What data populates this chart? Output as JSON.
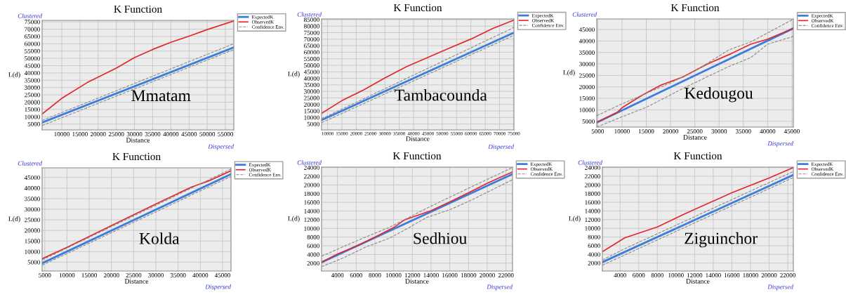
{
  "chart_data": [
    {
      "type": "line",
      "title": "K Function",
      "xlabel": "Distance",
      "ylabel": "L(d)",
      "annotations": [
        "Clustered",
        "Dispersed",
        "Mmatam"
      ],
      "grid": true,
      "legend": "top right",
      "xlim": [
        4600,
        57300
      ],
      "xticks": [
        10000,
        15000,
        20000,
        25000,
        30000,
        35000,
        40000,
        45000,
        50000,
        55000
      ],
      "ylim": [
        1000,
        76000
      ],
      "yticks": [
        5000,
        10000,
        15000,
        20000,
        25000,
        30000,
        35000,
        40000,
        45000,
        50000,
        55000,
        60000,
        65000,
        70000,
        75000
      ],
      "series": [
        {
          "name": "ExpectedK",
          "color": "#3b7ddd",
          "line_style": "solid",
          "x": [
            4600,
            57300
          ],
          "values": [
            6000,
            57500
          ]
        },
        {
          "name": "ObservedK",
          "color": "#e3262d",
          "line_style": "solid",
          "x": [
            4600,
            10000,
            17000,
            25000,
            30000,
            35000,
            40000,
            45000,
            50000,
            57300
          ],
          "values": [
            11900,
            22600,
            33400,
            43300,
            50500,
            56100,
            61000,
            65200,
            69700,
            75600
          ]
        },
        {
          "name": "Confidence Env.",
          "color": "#8a8a8a",
          "line_style": "dashed",
          "x": [
            4600,
            57300
          ],
          "values": [
            7500,
            60000
          ]
        },
        {
          "color": "#8a8a8a",
          "line_style": "dashed",
          "x": [
            4600,
            57300
          ],
          "values": [
            4000,
            56000
          ]
        }
      ]
    },
    {
      "type": "line",
      "title": "K Function",
      "xlabel": "Distance",
      "ylabel": "L(d)",
      "annotations": [
        "Clustered",
        "Dispersed",
        "Tambacounda"
      ],
      "grid": true,
      "legend": "top right",
      "xlim": [
        7900,
        75000
      ],
      "xticks": [
        10000,
        15000,
        20000,
        25000,
        30000,
        35000,
        40000,
        45000,
        50000,
        55000,
        60000,
        65000,
        70000,
        75000
      ],
      "ylim": [
        500,
        85500
      ],
      "yticks": [
        5000,
        10000,
        15000,
        20000,
        25000,
        30000,
        35000,
        40000,
        45000,
        50000,
        55000,
        60000,
        65000,
        70000,
        75000,
        80000,
        85000
      ],
      "series": [
        {
          "name": "ExpectedK",
          "color": "#3b7ddd",
          "line_style": "solid",
          "x": [
            7900,
            75000
          ],
          "values": [
            8000,
            75000
          ]
        },
        {
          "name": "ObservedK",
          "color": "#e3262d",
          "line_style": "solid",
          "x": [
            7900,
            15000,
            22500,
            30000,
            37500,
            45000,
            52500,
            60000,
            67500,
            75000
          ],
          "values": [
            13100,
            22900,
            31000,
            40300,
            48900,
            56100,
            63200,
            70100,
            78100,
            84600
          ]
        },
        {
          "name": "Confidence Env.",
          "color": "#8a8a8a",
          "line_style": "dashed",
          "x": [
            7900,
            75000
          ],
          "values": [
            9000,
            79000
          ]
        },
        {
          "color": "#8a8a8a",
          "line_style": "dashed",
          "x": [
            7900,
            75000
          ],
          "values": [
            6000,
            73000
          ]
        }
      ]
    },
    {
      "type": "line",
      "title": "K Function",
      "xlabel": "Distance",
      "ylabel": "L(d)",
      "annotations": [
        "Clustered",
        "Dispersed",
        "Kedougou"
      ],
      "grid": true,
      "legend": "top right",
      "xlim": [
        4800,
        45300
      ],
      "xticks": [
        5000,
        10000,
        15000,
        20000,
        25000,
        30000,
        35000,
        40000,
        45000
      ],
      "ylim": [
        2500,
        49600
      ],
      "yticks": [
        5000,
        10000,
        15000,
        20000,
        25000,
        30000,
        35000,
        40000,
        45000
      ],
      "series": [
        {
          "name": "ExpectedK",
          "color": "#3b7ddd",
          "line_style": "solid",
          "x": [
            4800,
            45300
          ],
          "values": [
            4500,
            45500
          ]
        },
        {
          "name": "ObservedK",
          "color": "#e3262d",
          "line_style": "solid",
          "x": [
            4800,
            9000,
            10000,
            14000,
            18000,
            22500,
            27500,
            32500,
            36500,
            40000,
            45300
          ],
          "values": [
            4600,
            8900,
            10900,
            16200,
            20800,
            24300,
            29900,
            34500,
            38600,
            40800,
            45500
          ]
        },
        {
          "name": "Confidence Env.",
          "color": "#8a8a8a",
          "line_style": "dashed",
          "x": [
            4800,
            10000,
            20000,
            25000,
            32000,
            36500,
            45300
          ],
          "values": [
            7500,
            12600,
            21800,
            26900,
            36100,
            39600,
            49500
          ]
        },
        {
          "color": "#8a8a8a",
          "line_style": "dashed",
          "x": [
            4800,
            10000,
            15000,
            23000,
            32000,
            36500,
            40000,
            45300
          ],
          "values": [
            2500,
            7000,
            11100,
            19800,
            28900,
            32700,
            38600,
            42000
          ]
        }
      ]
    },
    {
      "type": "line",
      "title": "K Function",
      "xlabel": "Distance",
      "ylabel": "L(d)",
      "annotations": [
        "Clustered",
        "Dispersed",
        "Kolda"
      ],
      "grid": true,
      "legend": "top right",
      "xlim": [
        4400,
        46900
      ],
      "xticks": [
        5000,
        10000,
        15000,
        20000,
        25000,
        30000,
        35000,
        40000,
        45000
      ],
      "ylim": [
        800,
        49600
      ],
      "yticks": [
        5000,
        10000,
        15000,
        20000,
        25000,
        30000,
        35000,
        40000,
        45000
      ],
      "series": [
        {
          "name": "ExpectedK",
          "color": "#3b7ddd",
          "line_style": "solid",
          "x": [
            4400,
            46900
          ],
          "values": [
            4500,
            46600
          ]
        },
        {
          "name": "ObservedK",
          "color": "#e3262d",
          "line_style": "solid",
          "x": [
            4400,
            10000,
            20000,
            30000,
            38000,
            42000,
            46900
          ],
          "values": [
            6600,
            12000,
            22300,
            32500,
            40500,
            43500,
            48200
          ]
        },
        {
          "name": "Confidence Env.",
          "color": "#8a8a8a",
          "line_style": "dashed",
          "x": [
            4400,
            46900
          ],
          "values": [
            6000,
            49000
          ]
        },
        {
          "color": "#8a8a8a",
          "line_style": "dashed",
          "x": [
            4400,
            46900
          ],
          "values": [
            3500,
            45500
          ]
        }
      ]
    },
    {
      "type": "line",
      "title": "K Function",
      "xlabel": "Distance",
      "ylabel": "L(d)",
      "annotations": [
        "Clustered",
        "Dispersed",
        "Sedhiou"
      ],
      "grid": true,
      "legend": "top right",
      "xlim": [
        2300,
        22700
      ],
      "xticks": [
        4000,
        6000,
        8000,
        10000,
        12000,
        14000,
        16000,
        18000,
        20000,
        22000
      ],
      "ylim": [
        200,
        24100
      ],
      "yticks": [
        2000,
        4000,
        6000,
        8000,
        10000,
        12000,
        14000,
        16000,
        18000,
        20000,
        22000,
        24000
      ],
      "series": [
        {
          "name": "ExpectedK",
          "color": "#3b7ddd",
          "line_style": "solid",
          "x": [
            2300,
            22700
          ],
          "values": [
            2200,
            22500
          ]
        },
        {
          "name": "ObservedK",
          "color": "#e3262d",
          "line_style": "solid",
          "x": [
            2300,
            4000,
            6000,
            8000,
            10000,
            11200,
            14000,
            16000,
            18000,
            20000,
            22700
          ],
          "values": [
            2200,
            4100,
            5900,
            8000,
            10200,
            12000,
            14100,
            16100,
            18200,
            20400,
            23000
          ]
        },
        {
          "name": "Confidence Env.",
          "color": "#8a8a8a",
          "line_style": "dashed",
          "x": [
            2300,
            4500,
            7000,
            9500,
            13500,
            16000,
            22700
          ],
          "values": [
            3600,
            5700,
            8000,
            10200,
            14600,
            17200,
            24000
          ]
        },
        {
          "color": "#8a8a8a",
          "line_style": "dashed",
          "x": [
            2300,
            4500,
            7000,
            9500,
            11500,
            13500,
            16000,
            18000,
            22700
          ],
          "values": [
            1200,
            3100,
            5700,
            7700,
            10000,
            12500,
            14300,
            16200,
            21200
          ]
        }
      ]
    },
    {
      "type": "line",
      "title": "K Function",
      "xlabel": "Distance",
      "ylabel": "L(d)",
      "annotations": [
        "Clustered",
        "Dispersed",
        "Ziguinchor"
      ],
      "grid": true,
      "legend": "top right",
      "xlim": [
        2100,
        22600
      ],
      "xticks": [
        4000,
        6000,
        8000,
        10000,
        12000,
        14000,
        16000,
        18000,
        20000,
        22000
      ],
      "ylim": [
        160,
        24100
      ],
      "yticks": [
        2000,
        4000,
        6000,
        8000,
        10000,
        12000,
        14000,
        16000,
        18000,
        20000,
        22000,
        24000
      ],
      "series": [
        {
          "name": "ExpectedK",
          "color": "#3b7ddd",
          "line_style": "solid",
          "x": [
            2100,
            22600
          ],
          "values": [
            2200,
            22300
          ]
        },
        {
          "name": "ObservedK",
          "color": "#e3262d",
          "line_style": "solid",
          "x": [
            2100,
            4500,
            8000,
            11000,
            16000,
            20000,
            22600
          ],
          "values": [
            4600,
            7800,
            10300,
            13400,
            18200,
            21600,
            24000
          ]
        },
        {
          "name": "Confidence Env.",
          "color": "#8a8a8a",
          "line_style": "dashed",
          "x": [
            2100,
            4500,
            22600
          ],
          "values": [
            2700,
            5300,
            23100
          ]
        },
        {
          "color": "#8a8a8a",
          "line_style": "dashed",
          "x": [
            2100,
            22600
          ],
          "values": [
            1500,
            21700
          ]
        }
      ]
    }
  ]
}
